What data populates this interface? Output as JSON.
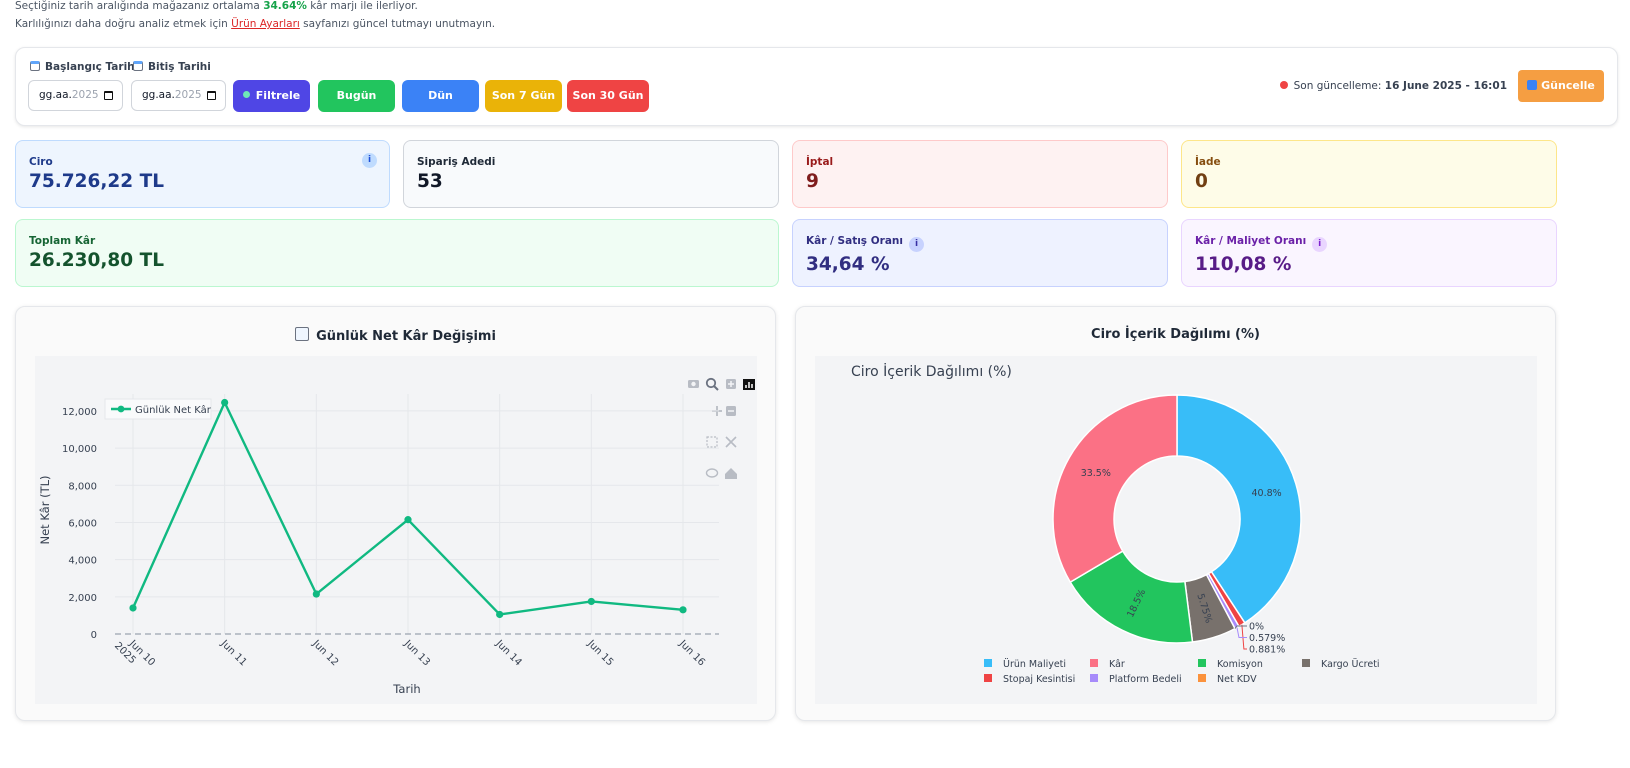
{
  "notice": {
    "line1_prefix": "Seçtiğiniz tarih aralığında mağazanız ortalama",
    "line1_value": "34.64%",
    "line1_suffix": "kâr marjı ile ilerliyor.",
    "line2_prefix": "Karlılığınızı daha doğru analiz etmek için",
    "line2_link": "Ürün Ayarları",
    "line2_suffix": "sayfanızı güncel tutmayı unutmayın."
  },
  "filters": {
    "start_label": "Başlangıç Tarihi",
    "end_label": "Bitiş Tarihi",
    "date_placeholder": "gg.aa.",
    "date_year": "2025",
    "buttons": {
      "filter": "Filtrele",
      "today": "Bugün",
      "yesterday": "Dün",
      "last7": "Son 7 Gün",
      "last30": "Son 30 Gün"
    },
    "last_update_label": "Son güncelleme:",
    "last_update_value": "16 June 2025 - 16:01",
    "refresh": "Güncelle"
  },
  "kpis": {
    "ciro": {
      "label": "Ciro",
      "value": "75.726,22 TL"
    },
    "siparis": {
      "label": "Sipariş Adedi",
      "value": "53"
    },
    "iptal": {
      "label": "İptal",
      "value": "9"
    },
    "iade": {
      "label": "İade",
      "value": "0"
    },
    "toplam_kar": {
      "label": "Toplam Kâr",
      "value": "26.230,80 TL"
    },
    "kar_satis": {
      "label": "Kâr / Satış Oranı",
      "value": "34,64 %"
    },
    "kar_maliyet": {
      "label": "Kâr / Maliyet Oranı",
      "value": "110,08 %"
    },
    "info_glyph": "i"
  },
  "colors": {
    "filter": "#4f46e5",
    "today": "#22c55e",
    "yesterday": "#3b82f6",
    "last7": "#eab308",
    "last30": "#ef4444",
    "line": "#10b981"
  },
  "line_chart": {
    "card_title": "Günlük Net Kâr Değişimi",
    "chart_data": {
      "type": "line",
      "x": [
        "Jun 10\n2025",
        "Jun 11",
        "Jun 12",
        "Jun 13",
        "Jun 14",
        "Jun 15",
        "Jun 16"
      ],
      "series": [
        {
          "name": "Günlük Net Kâr",
          "values": [
            1400,
            12450,
            2150,
            6150,
            1050,
            1750,
            1300
          ]
        }
      ],
      "xlabel": "Tarih",
      "ylabel": "Net Kâr (TL)",
      "ylim": [
        0,
        12800
      ],
      "yticks": [
        0,
        2000,
        4000,
        6000,
        8000,
        10000,
        12000
      ],
      "ytick_labels": [
        "0",
        "2,000",
        "4,000",
        "6,000",
        "8,000",
        "10,000",
        "12,000"
      ],
      "grid": true,
      "legend": "top-left"
    }
  },
  "pie_chart": {
    "card_title": "Ciro İçerik Dağılımı (%)",
    "chart_data": {
      "type": "pie",
      "title": "Ciro İçerik Dağılımı (%)",
      "hole": true,
      "slices": [
        {
          "name": "Ürün Maliyeti",
          "value": 40.8,
          "label": "40.8%",
          "color": "#38bdf8"
        },
        {
          "name": "Stopaj Kesintisi",
          "value": 0.881,
          "label": "0.881%",
          "color": "#ef4444"
        },
        {
          "name": "Platform Bedeli",
          "value": 0.579,
          "label": "0.579%",
          "color": "#a78bfa"
        },
        {
          "name": "Net KDV",
          "value": 0,
          "label": "0%",
          "color": "#fb923c"
        },
        {
          "name": "Kargo Ücreti",
          "value": 5.75,
          "label": "5.75%",
          "color": "#78716c"
        },
        {
          "name": "Komisyon",
          "value": 18.5,
          "label": "18.5%",
          "color": "#22c55e"
        },
        {
          "name": "Kâr",
          "value": 33.5,
          "label": "33.5%",
          "color": "#fb7185"
        }
      ],
      "legend_order": [
        "Ürün Maliyeti",
        "Kâr",
        "Komisyon",
        "Kargo Ücreti",
        "Stopaj Kesintisi",
        "Platform Bedeli",
        "Net KDV"
      ],
      "legend": "bottom"
    }
  }
}
